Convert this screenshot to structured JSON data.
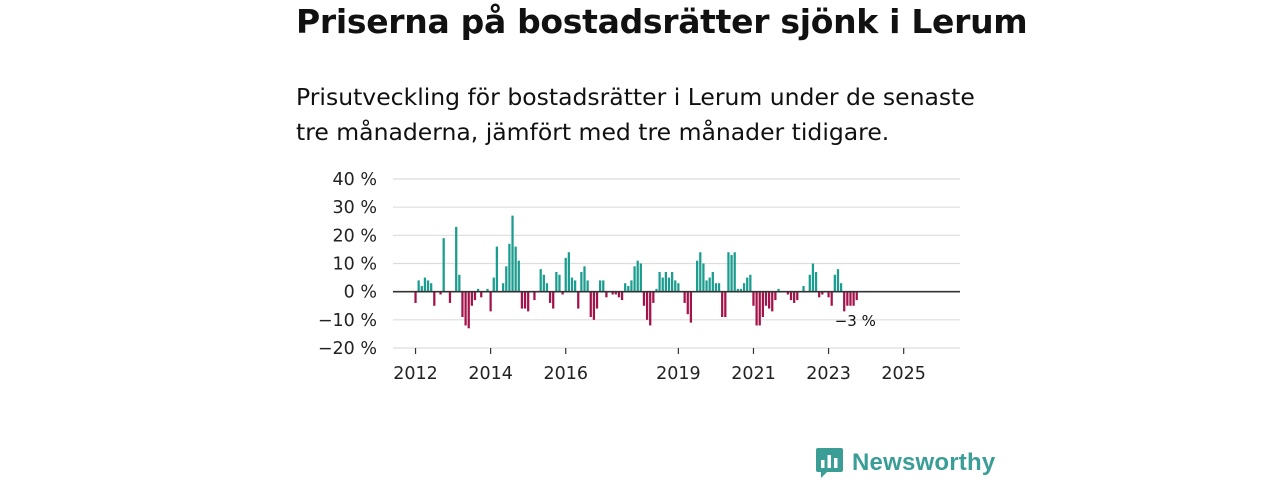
{
  "title": "Priserna på bostadsrätter sjönk i Lerum",
  "subtitle": "Prisutveckling för bostadsrätter i Lerum under de senaste tre månaderna, jämfört med tre månader tidigare.",
  "brand": {
    "name": "Newsworthy",
    "icon": "newsworthy-logo-icon"
  },
  "colors": {
    "positive": "#1a9c8e",
    "negative": "#a3134a",
    "grid": "#dddddd",
    "zero_line": "#333333",
    "brand": "#3a9e96"
  },
  "chart_data": {
    "type": "bar",
    "title": "Priserna på bostadsrätter sjönk i Lerum",
    "ylabel": "",
    "xlabel": "",
    "ylim": [
      -20,
      40
    ],
    "y_ticks": [
      40,
      30,
      20,
      10,
      0,
      -10,
      -20
    ],
    "y_tick_labels": [
      "40 %",
      "30 %",
      "20 %",
      "10 %",
      "0 %",
      "−10 %",
      "−20 %"
    ],
    "x_range": [
      2011.4,
      2026.5
    ],
    "x_ticks": [
      2012,
      2014,
      2016,
      2019,
      2021,
      2023,
      2025
    ],
    "x_tick_labels": [
      "2012",
      "2014",
      "2016",
      "2019",
      "2021",
      "2023",
      "2025"
    ],
    "start": 2012.0,
    "step_months": 1,
    "values": [
      -4,
      4,
      2,
      5,
      4,
      3,
      -5,
      0,
      -1,
      19,
      0,
      -4,
      0,
      23,
      6,
      -9,
      -12,
      -13,
      -5,
      -3,
      1,
      -2,
      0,
      1,
      -7,
      5,
      16,
      0,
      3,
      9,
      17,
      27,
      16,
      11,
      -6,
      -6,
      -7,
      0,
      -3,
      0,
      8,
      6,
      3,
      -4,
      -6,
      7,
      6,
      -1,
      12,
      14,
      5,
      4,
      -6,
      7,
      9,
      4,
      -9,
      -10,
      -6,
      4,
      4,
      -2,
      0,
      -1,
      -1,
      -2,
      -3,
      3,
      2,
      4,
      9,
      11,
      10,
      -5,
      -10,
      -12,
      -4,
      1,
      7,
      5,
      7,
      5,
      7,
      4,
      3,
      0,
      -4,
      -8,
      -11,
      0,
      11,
      14,
      10,
      4,
      5,
      7,
      3,
      3,
      -9,
      -9,
      14,
      13,
      14,
      1,
      1,
      3,
      5,
      6,
      -5,
      -12,
      -12,
      -9,
      -5,
      -6,
      -7,
      -3,
      1,
      0,
      0,
      -1,
      -3,
      -4,
      -3,
      0,
      2,
      0,
      6,
      10,
      7,
      -2,
      -1,
      0,
      -2,
      -5,
      6,
      8,
      3,
      -7,
      -5,
      -5,
      -5,
      -3
    ],
    "annotation": {
      "text": "−3 %",
      "label": "latest value"
    }
  }
}
